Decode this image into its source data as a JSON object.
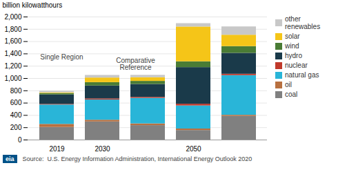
{
  "chart_data": {
    "type": "bar",
    "stacked": true,
    "categories": [
      "2019",
      "2030",
      null,
      "2050",
      null
    ],
    "series": [
      {
        "name": "coal",
        "color": "#808080",
        "values": [
          205,
          295,
          235,
          155,
          385
        ]
      },
      {
        "name": "oil",
        "color": "#b87040",
        "values": [
          50,
          28,
          28,
          25,
          18
        ]
      },
      {
        "name": "natural gas",
        "color": "#29b5d8",
        "values": [
          315,
          328,
          415,
          375,
          645
        ]
      },
      {
        "name": "nuclear",
        "color": "#c0392b",
        "values": [
          10,
          18,
          16,
          28,
          22
        ]
      },
      {
        "name": "hydro",
        "color": "#1a3a4a",
        "values": [
          155,
          210,
          210,
          595,
          340
        ]
      },
      {
        "name": "wind",
        "color": "#4a7c35",
        "values": [
          22,
          55,
          50,
          95,
          110
        ]
      },
      {
        "name": "solar",
        "color": "#f5c518",
        "values": [
          12,
          75,
          60,
          565,
          185
        ]
      },
      {
        "name": "other\nrenewables",
        "color": "#c8c8c8",
        "values": [
          25,
          42,
          38,
          55,
          135
        ]
      }
    ],
    "ylabel": "billion kilowatthours",
    "ylim": [
      0,
      2000
    ],
    "yticks": [
      0,
      200,
      400,
      600,
      800,
      {
        "value": 1000,
        "label": "1,000"
      },
      {
        "value": 1200,
        "label": "1,200"
      },
      {
        "value": 1400,
        "label": "1,400"
      },
      {
        "value": 1600,
        "label": "1,600"
      },
      {
        "value": 1800,
        "label": "1,800"
      },
      {
        "value": 2000,
        "label": "2,000"
      }
    ],
    "grid": true,
    "legend": "right",
    "annotations": [
      "Single Region",
      "Comparative\nReference"
    ],
    "caption": "Source:  U.S. Energy Information Administration, International Energy Outlook 2020",
    "logo": "eia"
  }
}
